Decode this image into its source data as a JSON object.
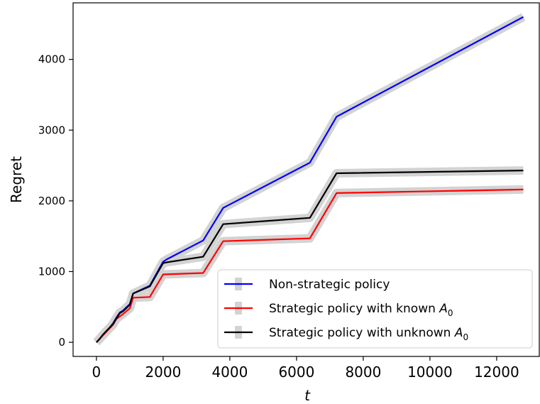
{
  "chart_data": {
    "type": "line",
    "xlabel": "t",
    "ylabel": "Regret",
    "xlim": [
      -700,
      13300
    ],
    "ylim": [
      -200,
      4800
    ],
    "xticks": [
      0,
      2000,
      4000,
      6000,
      8000,
      10000,
      12000
    ],
    "yticks": [
      0,
      1000,
      2000,
      3000,
      4000
    ],
    "grid": false,
    "legend_position": "lower-right",
    "series": [
      {
        "name": "Non-strategic policy",
        "color": "#0000ff",
        "band_color": "#d3d3d3",
        "x": [
          0,
          100,
          200,
          300,
          400,
          500,
          600,
          700,
          800,
          1000,
          1100,
          1600,
          2000,
          2100,
          3200,
          3800,
          6400,
          7200,
          12800
        ],
        "y": [
          0,
          50,
          110,
          160,
          210,
          270,
          350,
          420,
          450,
          540,
          690,
          800,
          1140,
          1170,
          1440,
          1900,
          2540,
          3190,
          4600
        ]
      },
      {
        "name": "Strategic policy with known A_0",
        "color": "#ff0000",
        "band_color": "#d3d3d3",
        "x": [
          0,
          100,
          200,
          300,
          400,
          500,
          600,
          800,
          1000,
          1100,
          1600,
          2000,
          3200,
          3800,
          6400,
          7200,
          12800
        ],
        "y": [
          0,
          50,
          100,
          150,
          200,
          250,
          330,
          400,
          480,
          630,
          640,
          960,
          980,
          1430,
          1470,
          2110,
          2160
        ]
      },
      {
        "name": "Strategic policy with unknown A_0",
        "color": "#000000",
        "band_color": "#d3d3d3",
        "x": [
          0,
          100,
          200,
          300,
          400,
          500,
          600,
          700,
          800,
          1000,
          1100,
          1600,
          2000,
          2100,
          3200,
          3800,
          6400,
          7200,
          12800
        ],
        "y": [
          0,
          50,
          110,
          160,
          210,
          260,
          340,
          410,
          440,
          530,
          690,
          790,
          1120,
          1130,
          1210,
          1670,
          1760,
          2390,
          2430
        ]
      }
    ]
  }
}
